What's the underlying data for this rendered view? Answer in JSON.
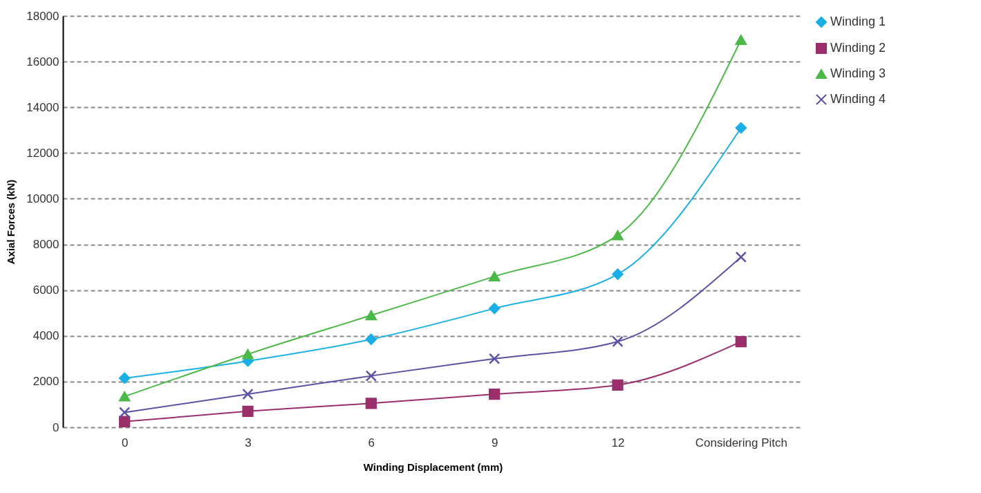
{
  "chart_data": {
    "type": "line",
    "xlabel": "Winding Displacement (mm)",
    "ylabel": "Axial Forces (kN)",
    "categories": [
      "0",
      "3",
      "6",
      "9",
      "12",
      "Considering Pitch"
    ],
    "series": [
      {
        "name": "Winding 1",
        "color": "#1aafe6",
        "marker": "diamond",
        "values": [
          2150,
          2900,
          3850,
          5200,
          6700,
          13100
        ]
      },
      {
        "name": "Winding 2",
        "color": "#9b2f6b",
        "marker": "square",
        "values": [
          250,
          700,
          1050,
          1450,
          1850,
          3750
        ]
      },
      {
        "name": "Winding 3",
        "color": "#4cb848",
        "marker": "triangle",
        "values": [
          1350,
          3200,
          4900,
          6600,
          8400,
          16950
        ]
      },
      {
        "name": "Winding 4",
        "color": "#5b52a3",
        "marker": "cross",
        "values": [
          650,
          1450,
          2250,
          3000,
          3750,
          7450
        ]
      }
    ],
    "ylim": [
      0,
      18000
    ],
    "yticks": [
      0,
      2000,
      4000,
      6000,
      8000,
      10000,
      12000,
      14000,
      16000,
      18000
    ],
    "grid": "y",
    "legend": "right",
    "line_style": "solid"
  }
}
